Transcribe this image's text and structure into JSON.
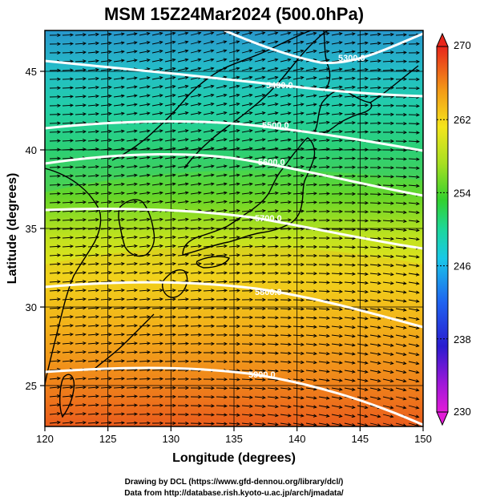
{
  "title": "MSM 15Z24Mar2024 (500.0hPa)",
  "xlabel": "Longitude (degrees)",
  "ylabel": "Latitude  (degrees)",
  "x_ticks": [
    120,
    125,
    130,
    135,
    140,
    145,
    150
  ],
  "y_ticks": [
    25,
    30,
    35,
    40,
    45
  ],
  "x_range": [
    120,
    150
  ],
  "y_range": [
    22.4,
    47.6
  ],
  "colorbar": {
    "min": 230,
    "max": 270,
    "ticks": [
      230,
      238,
      246,
      254,
      262,
      270
    ]
  },
  "contours": [
    {
      "label": "5300.0"
    },
    {
      "label": "5400.0"
    },
    {
      "label": "5500.0"
    },
    {
      "label": "5600.0"
    },
    {
      "label": "5700.0"
    },
    {
      "label": "5800.0"
    },
    {
      "label": "5900.0"
    }
  ],
  "credits": {
    "line1": "Drawing by DCL (https://www.gfd-dennou.org/library/dcl/)",
    "line2": "Data from http://database.rish.kyoto-u.ac.jp/arch/jmadata/"
  },
  "colors": {
    "contour": "#ffffff",
    "coast": "#000000",
    "arrow": "#000000"
  }
}
